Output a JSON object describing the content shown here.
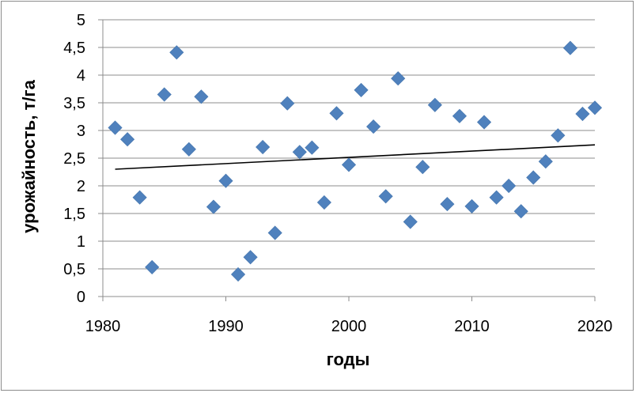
{
  "chart_data": {
    "type": "scatter",
    "title": "",
    "xlabel": "годы",
    "ylabel": "урожайность, т/га",
    "xlim": [
      1980,
      2020
    ],
    "ylim": [
      0,
      5
    ],
    "x_ticks": [
      "1980",
      "1990",
      "2000",
      "2010",
      "2020"
    ],
    "y_ticks": [
      "0",
      "0,5",
      "1",
      "1,5",
      "2",
      "2,5",
      "3",
      "3,5",
      "4",
      "4,5",
      "5"
    ],
    "grid": "horizontal",
    "legend": "none",
    "marker": "diamond",
    "colors": {
      "marker": "#4f81bd",
      "trendline": "#000000",
      "grid": "#8c8c8c"
    },
    "series": [
      {
        "x": [
          1981,
          1982,
          1983,
          1984,
          1985,
          1986,
          1987,
          1988,
          1989,
          1990,
          1991,
          1992,
          1993,
          1994,
          1995,
          1996,
          1997,
          1998,
          1999,
          2000,
          2001,
          2002,
          2003,
          2004,
          2005,
          2006,
          2007,
          2008,
          2009,
          2010,
          2011,
          2012,
          2013,
          2014,
          2015,
          2016,
          2017,
          2018,
          2019,
          2020
        ],
        "y": [
          3.05,
          2.84,
          1.79,
          0.53,
          3.65,
          4.41,
          2.66,
          3.61,
          1.62,
          2.09,
          0.4,
          0.71,
          2.7,
          1.15,
          3.49,
          2.61,
          2.69,
          1.7,
          3.31,
          2.38,
          3.73,
          3.07,
          1.81,
          3.94,
          1.35,
          2.34,
          3.46,
          1.67,
          3.26,
          1.63,
          3.15,
          1.79,
          2.0,
          1.54,
          2.15,
          2.44,
          2.91,
          4.49,
          3.3,
          3.41
        ]
      }
    ],
    "trendline": {
      "type": "linear",
      "x": [
        1981,
        2020
      ],
      "y": [
        2.3,
        2.74
      ]
    }
  }
}
